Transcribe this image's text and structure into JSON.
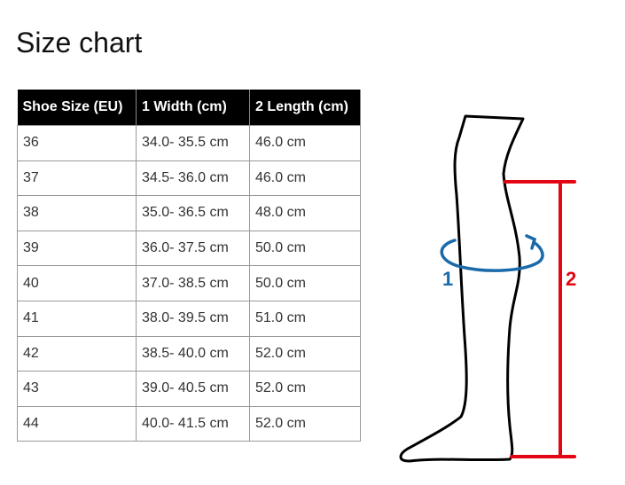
{
  "title": "Size chart",
  "table": {
    "headers": [
      "Shoe Size (EU)",
      "1 Width (cm)",
      "2 Length (cm)"
    ],
    "rows": [
      [
        "36",
        "34.0- 35.5 cm",
        "46.0 cm"
      ],
      [
        "37",
        "34.5- 36.0 cm",
        "46.0 cm"
      ],
      [
        "38",
        "35.0- 36.5 cm",
        "48.0 cm"
      ],
      [
        "39",
        "36.0- 37.5 cm",
        "50.0 cm"
      ],
      [
        "40",
        "37.0- 38.5 cm",
        "50.0 cm"
      ],
      [
        "41",
        "38.0- 39.5 cm",
        "51.0 cm"
      ],
      [
        "42",
        "38.5- 40.0 cm",
        "52.0 cm"
      ],
      [
        "43",
        "39.0- 40.5 cm",
        "52.0 cm"
      ],
      [
        "44",
        "40.0- 41.5 cm",
        "52.0 cm"
      ]
    ]
  },
  "diagram": {
    "width_label": "1",
    "length_label": "2",
    "width_color": "#1a6aaa",
    "length_color": "#e30613"
  }
}
